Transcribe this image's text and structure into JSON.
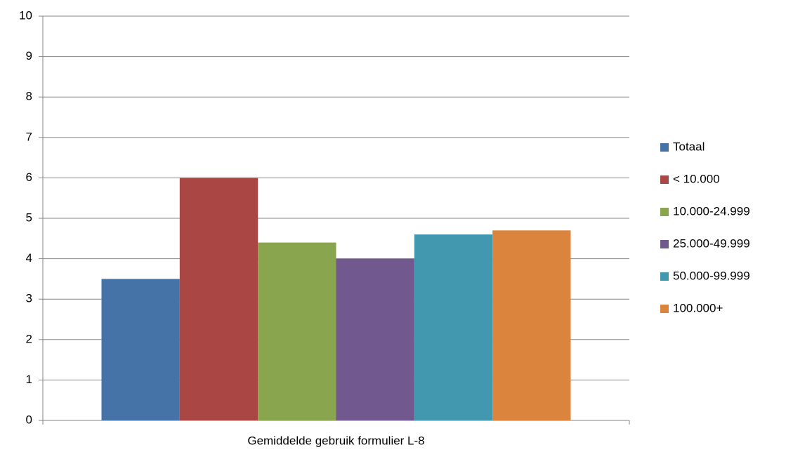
{
  "chart_data": {
    "type": "bar",
    "categories": [
      "Gemiddelde gebruik formulier L-8"
    ],
    "series": [
      {
        "name": "Totaal",
        "color": "#4572a7",
        "values": [
          3.5
        ]
      },
      {
        "name": "< 10.000",
        "color": "#aa4643",
        "values": [
          6
        ]
      },
      {
        "name": "10.000-24.999",
        "color": "#89a54e",
        "values": [
          4.4
        ]
      },
      {
        "name": "25.000-49.999",
        "color": "#71588f",
        "values": [
          4
        ]
      },
      {
        "name": "50.000-99.999",
        "color": "#4198af",
        "values": [
          4.6
        ]
      },
      {
        "name": "100.000+",
        "color": "#db843d",
        "values": [
          4.7
        ]
      }
    ],
    "ylim": [
      0,
      10
    ],
    "yticks": [
      0,
      1,
      2,
      3,
      4,
      5,
      6,
      7,
      8,
      9,
      10
    ],
    "grid": true,
    "legend": "right"
  }
}
